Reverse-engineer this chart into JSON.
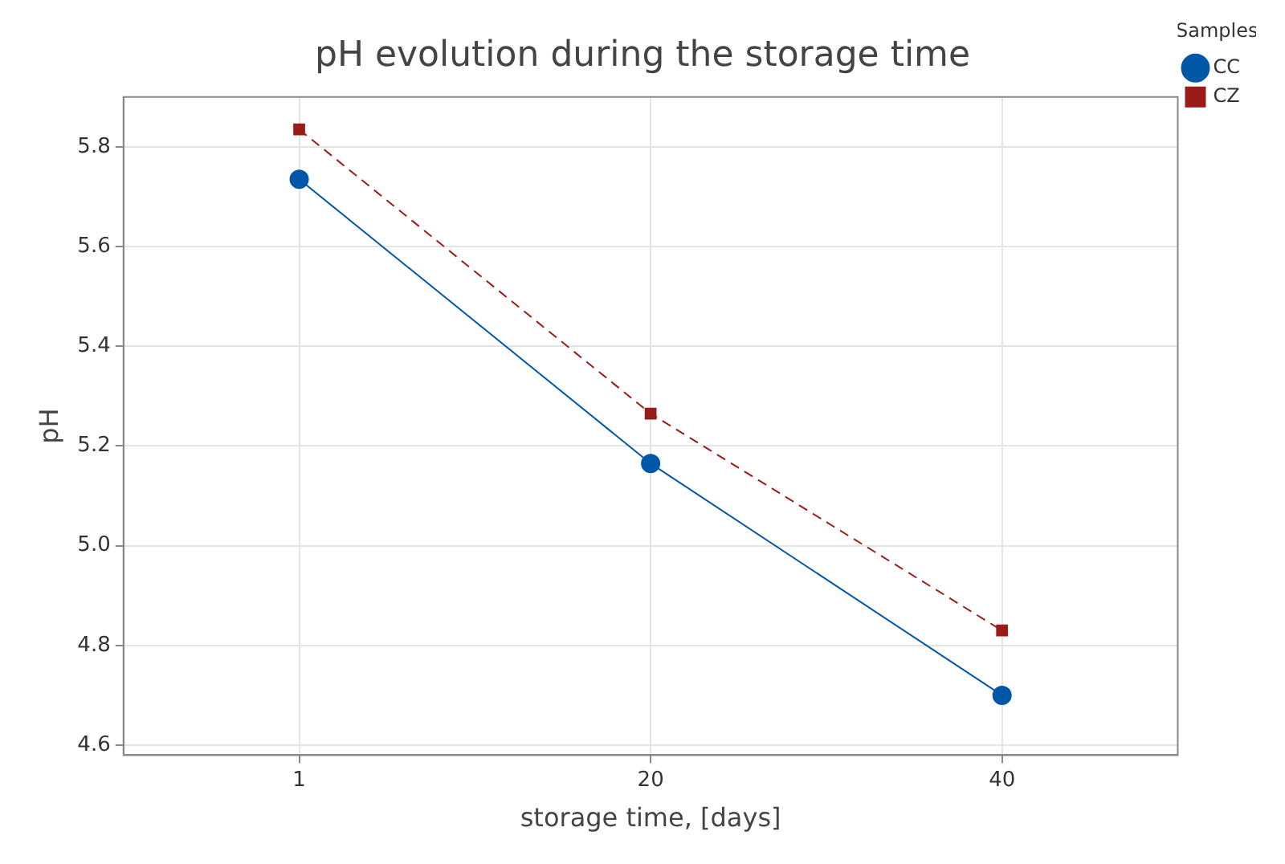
{
  "chart_data": {
    "type": "line",
    "title": "pH evolution during the storage time",
    "xlabel": "storage time, [days]",
    "ylabel": "pH",
    "legend_title": "Samples",
    "categories": [
      "1",
      "20",
      "40"
    ],
    "series": [
      {
        "name": "CC",
        "color": "#0057a8",
        "values": [
          5.735,
          5.165,
          4.7
        ],
        "marker": "circle",
        "line_style": "solid"
      },
      {
        "name": "CZ",
        "color": "#9b1b1b",
        "values": [
          5.835,
          5.265,
          4.83
        ],
        "marker": "square",
        "line_style": "dashed"
      }
    ],
    "ylim": [
      4.58,
      5.9
    ],
    "yticks": [
      4.6,
      4.8,
      {
        "value": 5,
        "label": "5.0"
      },
      5.2,
      5.4,
      5.6,
      5.8
    ],
    "grid": true,
    "legend": "top right"
  }
}
